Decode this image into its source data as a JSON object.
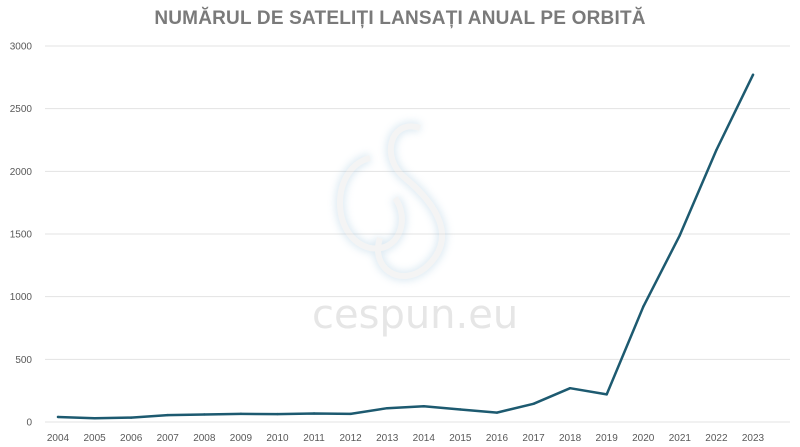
{
  "title": "NUMĂRUL DE SATELIȚI LANSAȚI ANUAL PE ORBITĂ",
  "watermark": {
    "text": "cespun.eu"
  },
  "colors": {
    "line": "#1d5a70",
    "grid": "#e3e3e3",
    "title": "#7a7a7a",
    "tick": "#595959"
  },
  "chart_data": {
    "type": "line",
    "title": "NUMĂRUL DE SATELIȚI LANSAȚI ANUAL PE ORBITĂ",
    "xlabel": "",
    "ylabel": "",
    "grid": true,
    "ylim": [
      0,
      3000
    ],
    "yticks": [
      0,
      500,
      1000,
      1500,
      2000,
      2500,
      3000
    ],
    "x": [
      "2004",
      "2005",
      "2006",
      "2007",
      "2008",
      "2009",
      "2010",
      "2011",
      "2012",
      "2013",
      "2014",
      "2015",
      "2016",
      "2017",
      "2018",
      "2019",
      "2020",
      "2021",
      "2022",
      "2023"
    ],
    "series": [
      {
        "values": [
          40,
          30,
          35,
          55,
          60,
          65,
          63,
          68,
          65,
          110,
          125,
          100,
          75,
          145,
          270,
          220,
          920,
          1490,
          2170,
          2770
        ]
      }
    ]
  }
}
